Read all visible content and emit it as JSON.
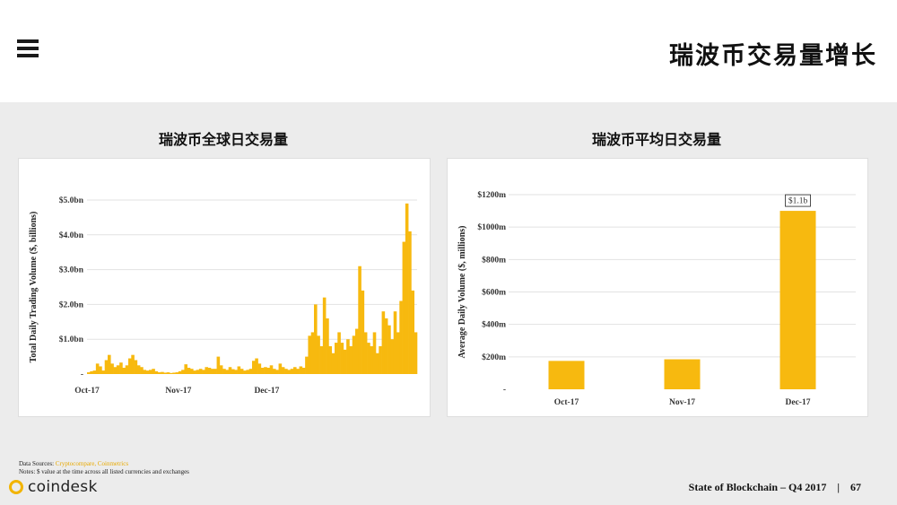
{
  "slide_title": "瑞波币交易量增长",
  "footer": {
    "report": "State of Blockchain – Q4 2017",
    "separator": "|",
    "page": "67",
    "logo_text": "coindesk",
    "sources_label": "Data Sources: ",
    "sources": "Cryptocompare, Coinmetrics",
    "notes": "Notes: $ value at the time across all listed currencies and exchanges"
  },
  "colors": {
    "bar": "#f7b90f",
    "grid": "#e2e2e2",
    "link": "#e8a900"
  },
  "chart_data": [
    {
      "type": "bar",
      "title": "瑞波币全球日交易量",
      "ylabel": "Total Daily Trading Volume ($, billions)",
      "ylim": [
        0,
        5.0
      ],
      "yticks": [
        0,
        1.0,
        2.0,
        3.0,
        4.0,
        5.0
      ],
      "ytick_labels": [
        "-",
        "$1.0bn",
        "$2.0bn",
        "$3.0bn",
        "$4.0bn",
        "$5.0bn"
      ],
      "xtick_labels": [
        "Oct-17",
        "Nov-17",
        "Dec-17"
      ],
      "xtick_index": [
        0,
        31,
        61
      ],
      "values": [
        0.05,
        0.08,
        0.1,
        0.3,
        0.22,
        0.1,
        0.4,
        0.55,
        0.3,
        0.2,
        0.25,
        0.33,
        0.18,
        0.25,
        0.45,
        0.55,
        0.4,
        0.25,
        0.2,
        0.12,
        0.1,
        0.12,
        0.15,
        0.08,
        0.05,
        0.06,
        0.04,
        0.05,
        0.03,
        0.04,
        0.05,
        0.08,
        0.12,
        0.28,
        0.18,
        0.15,
        0.1,
        0.12,
        0.15,
        0.12,
        0.2,
        0.18,
        0.15,
        0.15,
        0.5,
        0.25,
        0.15,
        0.12,
        0.2,
        0.14,
        0.12,
        0.22,
        0.15,
        0.1,
        0.12,
        0.15,
        0.38,
        0.45,
        0.3,
        0.18,
        0.2,
        0.18,
        0.25,
        0.15,
        0.12,
        0.3,
        0.2,
        0.15,
        0.12,
        0.15,
        0.2,
        0.15,
        0.22,
        0.18,
        0.5,
        1.1,
        1.2,
        2.0,
        1.1,
        0.8,
        2.2,
        1.6,
        0.8,
        0.6,
        0.9,
        1.2,
        0.9,
        0.7,
        1.0,
        0.8,
        1.1,
        1.3,
        3.1,
        2.4,
        1.2,
        0.9,
        0.8,
        1.2,
        0.6,
        0.8,
        1.8,
        1.6,
        1.4,
        1.0,
        1.8,
        1.2,
        2.1,
        3.8,
        4.9,
        4.1,
        2.4,
        1.2
      ]
    },
    {
      "type": "bar",
      "title": "瑞波币平均日交易量",
      "ylabel": "Average Daily Volume ($, millions)",
      "ylim": [
        0,
        1200
      ],
      "yticks": [
        0,
        200,
        400,
        600,
        800,
        1000,
        1200
      ],
      "ytick_labels": [
        "-",
        "$200m",
        "$400m",
        "$600m",
        "$800m",
        "$1000m",
        "$1200m"
      ],
      "categories": [
        "Oct-17",
        "Nov-17",
        "Dec-17"
      ],
      "values": [
        175,
        185,
        1100
      ],
      "data_labels": [
        "",
        "",
        "$1.1b"
      ]
    }
  ]
}
